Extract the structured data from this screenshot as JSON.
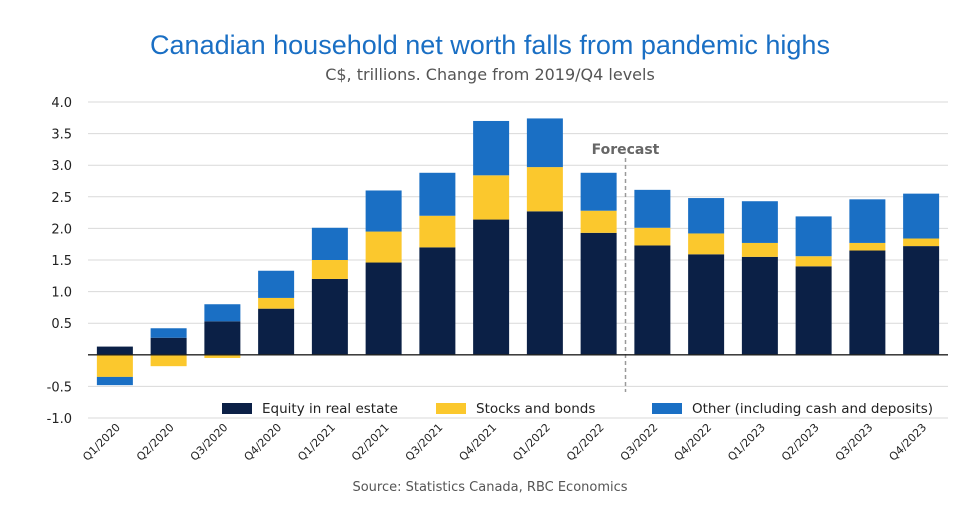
{
  "chart_data": {
    "type": "bar",
    "stacked": true,
    "title": "Canadian household net worth falls from pandemic highs",
    "subtitle": "C$, trillions. Change from 2019/Q4 levels",
    "source": "Source: Statistics Canada, RBC Economics",
    "categories": [
      "Q1/2020",
      "Q2/2020",
      "Q3/2020",
      "Q4/2020",
      "Q1/2021",
      "Q2/2021",
      "Q3/2021",
      "Q4/2021",
      "Q1/2022",
      "Q2/2022",
      "Q3/2022",
      "Q4/2022",
      "Q1/2023",
      "Q2/2023",
      "Q3/2023",
      "Q4/2023"
    ],
    "series": [
      {
        "name": "Equity in real estate",
        "color": "#0b2046",
        "values": [
          0.13,
          0.27,
          0.53,
          0.73,
          1.2,
          1.46,
          1.7,
          2.14,
          2.27,
          1.93,
          1.73,
          1.59,
          1.55,
          1.4,
          1.65,
          1.72
        ]
      },
      {
        "name": "Stocks and bonds",
        "color": "#fbc82d",
        "values": [
          -0.35,
          -0.18,
          -0.05,
          0.17,
          0.3,
          0.49,
          0.5,
          0.7,
          0.7,
          0.35,
          0.28,
          0.33,
          0.22,
          0.16,
          0.12,
          0.12
        ]
      },
      {
        "name": "Other (including cash and deposits)",
        "color": "#1a6fc4",
        "values": [
          -0.13,
          0.15,
          0.27,
          0.43,
          0.51,
          0.65,
          0.68,
          0.86,
          0.77,
          0.6,
          0.6,
          0.56,
          0.66,
          0.63,
          0.69,
          0.71
        ]
      }
    ],
    "ylim": [
      -1.0,
      4.0
    ],
    "yticks": [
      "4.0",
      "3.5",
      "3.0",
      "2.5",
      "2.0",
      "1.5",
      "1.0",
      "0.5",
      "-0.5",
      "-1.0"
    ],
    "ytick_values": [
      4.0,
      3.5,
      3.0,
      2.5,
      2.0,
      1.5,
      1.0,
      0.5,
      -0.5,
      -1.0
    ],
    "annotation": "Forecast",
    "forecast_after_index": 9,
    "grid": true,
    "legend_placement": "bottom-right"
  }
}
